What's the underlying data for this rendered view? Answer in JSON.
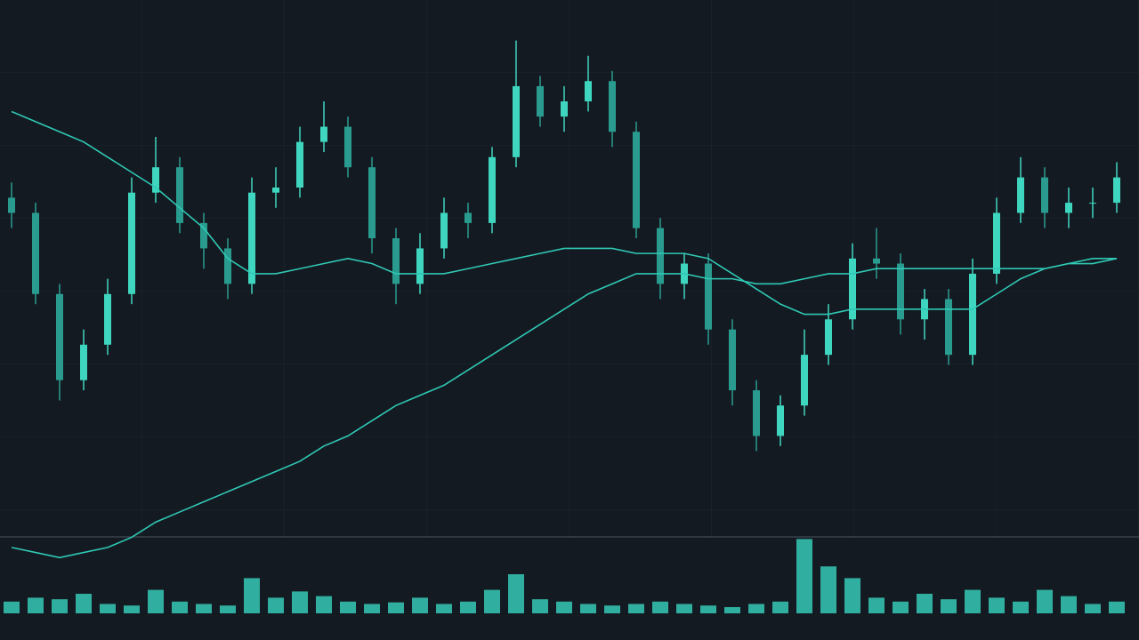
{
  "chart_data": {
    "type": "candlestick",
    "up_color": "#3fd6c0",
    "down_color": "#2a9c8f",
    "ylim": [
      -16,
      105
    ],
    "y2lim": [
      0,
      100
    ],
    "open": [
      66,
      63,
      47,
      30,
      37,
      47,
      67,
      72,
      61,
      56,
      49,
      67,
      68,
      77,
      80,
      72,
      58,
      49,
      56,
      63,
      61,
      74,
      88,
      82,
      85,
      89,
      79,
      60,
      49,
      53,
      40,
      28,
      19,
      25,
      35,
      42,
      54,
      53,
      42,
      46,
      35,
      51,
      63,
      70,
      63,
      65,
      65
    ],
    "high": [
      69,
      65,
      49,
      40,
      50,
      70,
      78,
      74,
      63,
      58,
      70,
      72,
      80,
      85,
      82,
      74,
      60,
      59,
      66,
      65,
      76,
      97,
      90,
      88,
      94,
      91,
      81,
      62,
      55,
      55,
      42,
      30,
      27,
      40,
      45,
      57,
      60,
      55,
      48,
      48,
      54,
      66,
      74,
      72,
      68,
      68,
      73
    ],
    "low": [
      60,
      45,
      26,
      28,
      35,
      45,
      65,
      59,
      52,
      46,
      47,
      64,
      66,
      75,
      70,
      55,
      45,
      47,
      54,
      58,
      59,
      72,
      80,
      79,
      83,
      76,
      58,
      46,
      46,
      37,
      25,
      16,
      17,
      23,
      33,
      40,
      50,
      39,
      38,
      33,
      33,
      49,
      61,
      60,
      60,
      62,
      63
    ],
    "close": [
      63,
      47,
      30,
      37,
      47,
      67,
      72,
      61,
      56,
      49,
      67,
      68,
      77,
      80,
      72,
      58,
      49,
      56,
      63,
      61,
      74,
      88,
      82,
      85,
      89,
      79,
      60,
      49,
      53,
      40,
      28,
      19,
      25,
      35,
      42,
      54,
      53,
      42,
      46,
      35,
      51,
      63,
      70,
      63,
      65,
      65,
      70
    ],
    "series": [
      {
        "type": "line",
        "color": "#2fc8b4",
        "values": [
          -3,
          -4,
          -5,
          -4,
          -3,
          -1,
          2,
          4,
          6,
          8,
          10,
          12,
          14,
          17,
          19,
          22,
          25,
          27,
          29,
          32,
          35,
          38,
          41,
          44,
          47,
          49,
          51,
          51,
          51,
          50,
          50,
          49,
          49,
          50,
          51,
          51,
          52,
          52,
          52,
          52,
          52,
          52,
          52,
          52,
          53,
          53,
          54
        ]
      },
      {
        "type": "line",
        "color": "#2fc8b4",
        "values": [
          83,
          81,
          79,
          77,
          74,
          71,
          68,
          64,
          60,
          54,
          51,
          51,
          52,
          53,
          54,
          53,
          51,
          51,
          51,
          52,
          53,
          54,
          55,
          56,
          56,
          56,
          55,
          55,
          55,
          54,
          51,
          48,
          45,
          43,
          43,
          44,
          44,
          44,
          44,
          44,
          44,
          47,
          50,
          52,
          53,
          54,
          54
        ]
      },
      {
        "type": "bar",
        "axis": "y2",
        "color": "#35c9b5",
        "values": [
          15,
          20,
          18,
          25,
          12,
          10,
          30,
          15,
          12,
          10,
          45,
          20,
          28,
          22,
          15,
          12,
          14,
          20,
          12,
          15,
          30,
          50,
          18,
          15,
          12,
          10,
          12,
          15,
          12,
          10,
          8,
          12,
          15,
          95,
          60,
          45,
          20,
          15,
          25,
          18,
          30,
          20,
          15,
          30,
          22,
          12,
          15
        ]
      }
    ]
  }
}
